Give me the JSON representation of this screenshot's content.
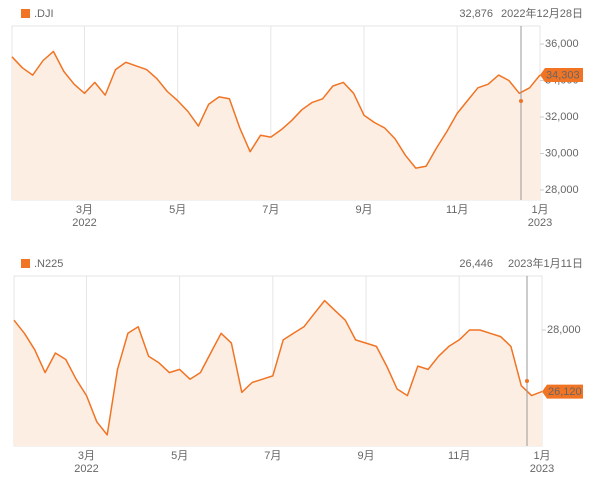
{
  "chart_data": [
    {
      "type": "line",
      "series": [
        {
          "name": ".DJI",
          "color": "#f07424",
          "values": [
            35300,
            34700,
            34300,
            35100,
            35600,
            34500,
            33800,
            33300,
            33900,
            33200,
            34600,
            35000,
            34800,
            34600,
            34100,
            33400,
            32900,
            32300,
            31500,
            32700,
            33100,
            33000,
            31400,
            30100,
            31000,
            30900,
            31300,
            31800,
            32400,
            32800,
            33000,
            33700,
            33900,
            33300,
            32100,
            31700,
            31400,
            30800,
            29900,
            29200,
            29300,
            30300,
            31200,
            32200,
            32900,
            33600,
            33800,
            34300,
            34000,
            33300,
            33600,
            34303
          ],
          "value_labels": [
            null,
            null,
            null,
            null,
            null,
            null,
            null,
            null,
            null,
            null,
            null,
            null,
            null,
            null,
            null,
            null,
            null,
            null,
            null,
            null,
            null,
            null,
            null,
            null,
            null,
            null,
            null,
            null,
            null,
            null,
            null,
            null,
            null,
            null,
            null,
            null,
            null,
            null,
            null,
            null,
            null,
            null,
            null,
            null,
            null,
            null,
            null,
            null,
            null,
            null,
            null,
            "34,303"
          ]
        }
      ],
      "categories": [
        null,
        null,
        null,
        null,
        null,
        null,
        null,
        "3月\n2022",
        null,
        null,
        null,
        null,
        null,
        null,
        null,
        null,
        "5月",
        null,
        null,
        null,
        null,
        null,
        null,
        null,
        null,
        "7月",
        null,
        null,
        null,
        null,
        null,
        null,
        null,
        null,
        "9月",
        null,
        null,
        null,
        null,
        null,
        null,
        null,
        null,
        "11月",
        null,
        null,
        null,
        null,
        null,
        null,
        null,
        "1月\n2023"
      ],
      "ylim": [
        27450,
        36990
      ],
      "yticks": [
        {
          "value": 28000,
          "label": "28,000"
        },
        {
          "value": 30000,
          "label": "30,000"
        },
        {
          "value": 32000,
          "label": "32,000"
        },
        {
          "value": 34000,
          "label": "34,000"
        },
        {
          "value": 36000,
          "label": "36,000"
        }
      ],
      "hover": {
        "value": 32876,
        "label": "32,876",
        "date": "2022年12月28日"
      },
      "grid": true
    },
    {
      "type": "line",
      "series": [
        {
          "name": ".N225",
          "color": "#f07424",
          "values": [
            28300,
            27900,
            27400,
            26700,
            27300,
            27100,
            26500,
            26000,
            25200,
            24800,
            26800,
            27900,
            28100,
            27200,
            27000,
            26700,
            26800,
            26500,
            26700,
            27300,
            27900,
            27600,
            26100,
            26400,
            26500,
            26600,
            27700,
            27900,
            28100,
            28500,
            28900,
            28600,
            28300,
            27700,
            27600,
            27500,
            26900,
            26200,
            26000,
            26900,
            26800,
            27200,
            27500,
            27700,
            28000,
            28000,
            27900,
            27800,
            27500,
            26300,
            26000,
            26120
          ],
          "value_labels": [
            null,
            null,
            null,
            null,
            null,
            null,
            null,
            null,
            null,
            null,
            null,
            null,
            null,
            null,
            null,
            null,
            null,
            null,
            null,
            null,
            null,
            null,
            null,
            null,
            null,
            null,
            null,
            null,
            null,
            null,
            null,
            null,
            null,
            null,
            null,
            null,
            null,
            null,
            null,
            null,
            null,
            null,
            null,
            null,
            null,
            null,
            null,
            null,
            null,
            null,
            null,
            "26,120"
          ]
        }
      ],
      "categories": [
        null,
        null,
        null,
        null,
        null,
        null,
        null,
        "3月\n2022",
        null,
        null,
        null,
        null,
        null,
        null,
        null,
        null,
        "5月",
        null,
        null,
        null,
        null,
        null,
        null,
        null,
        null,
        "7月",
        null,
        null,
        null,
        null,
        null,
        null,
        null,
        null,
        "9月",
        null,
        null,
        null,
        null,
        null,
        null,
        null,
        null,
        "11月",
        null,
        null,
        null,
        null,
        null,
        null,
        null,
        "1月\n2023"
      ],
      "ylim": [
        24460,
        29650
      ],
      "yticks": [
        {
          "value": 28000,
          "label": "28,000"
        }
      ],
      "hover": {
        "value": 26446,
        "label": "26,446",
        "date": "2023年1月11日"
      },
      "grid": true
    }
  ]
}
